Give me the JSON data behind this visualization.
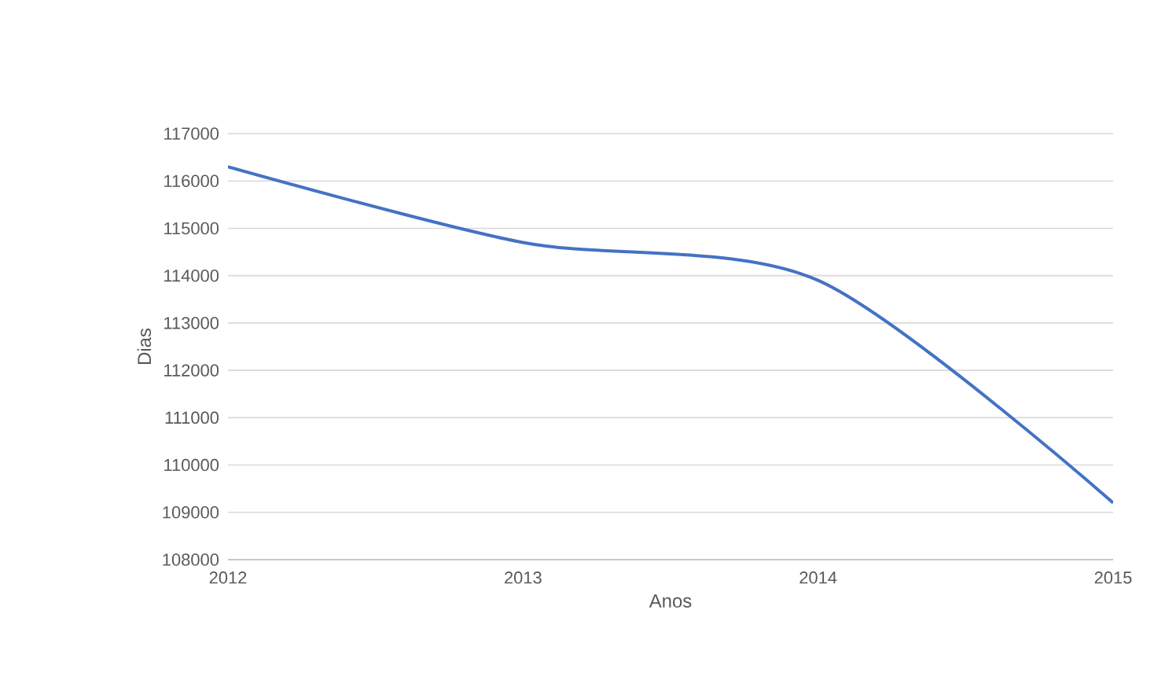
{
  "chart_data": {
    "type": "line",
    "xlabel": "Anos",
    "ylabel": "Dias",
    "x": [
      2012,
      2013,
      2014,
      2015
    ],
    "series": [
      {
        "color": "#4472c4",
        "values": [
          116300,
          114700,
          113900,
          109200
        ]
      }
    ],
    "xlim": [
      2012,
      2015
    ],
    "xticks": [
      2012,
      2013,
      2014,
      2015
    ],
    "ylim": [
      108000,
      117000
    ],
    "yticks": [
      108000,
      109000,
      110000,
      111000,
      112000,
      113000,
      114000,
      115000,
      116000,
      117000
    ],
    "grid": "y",
    "marker": "none",
    "line_style": "solid"
  }
}
